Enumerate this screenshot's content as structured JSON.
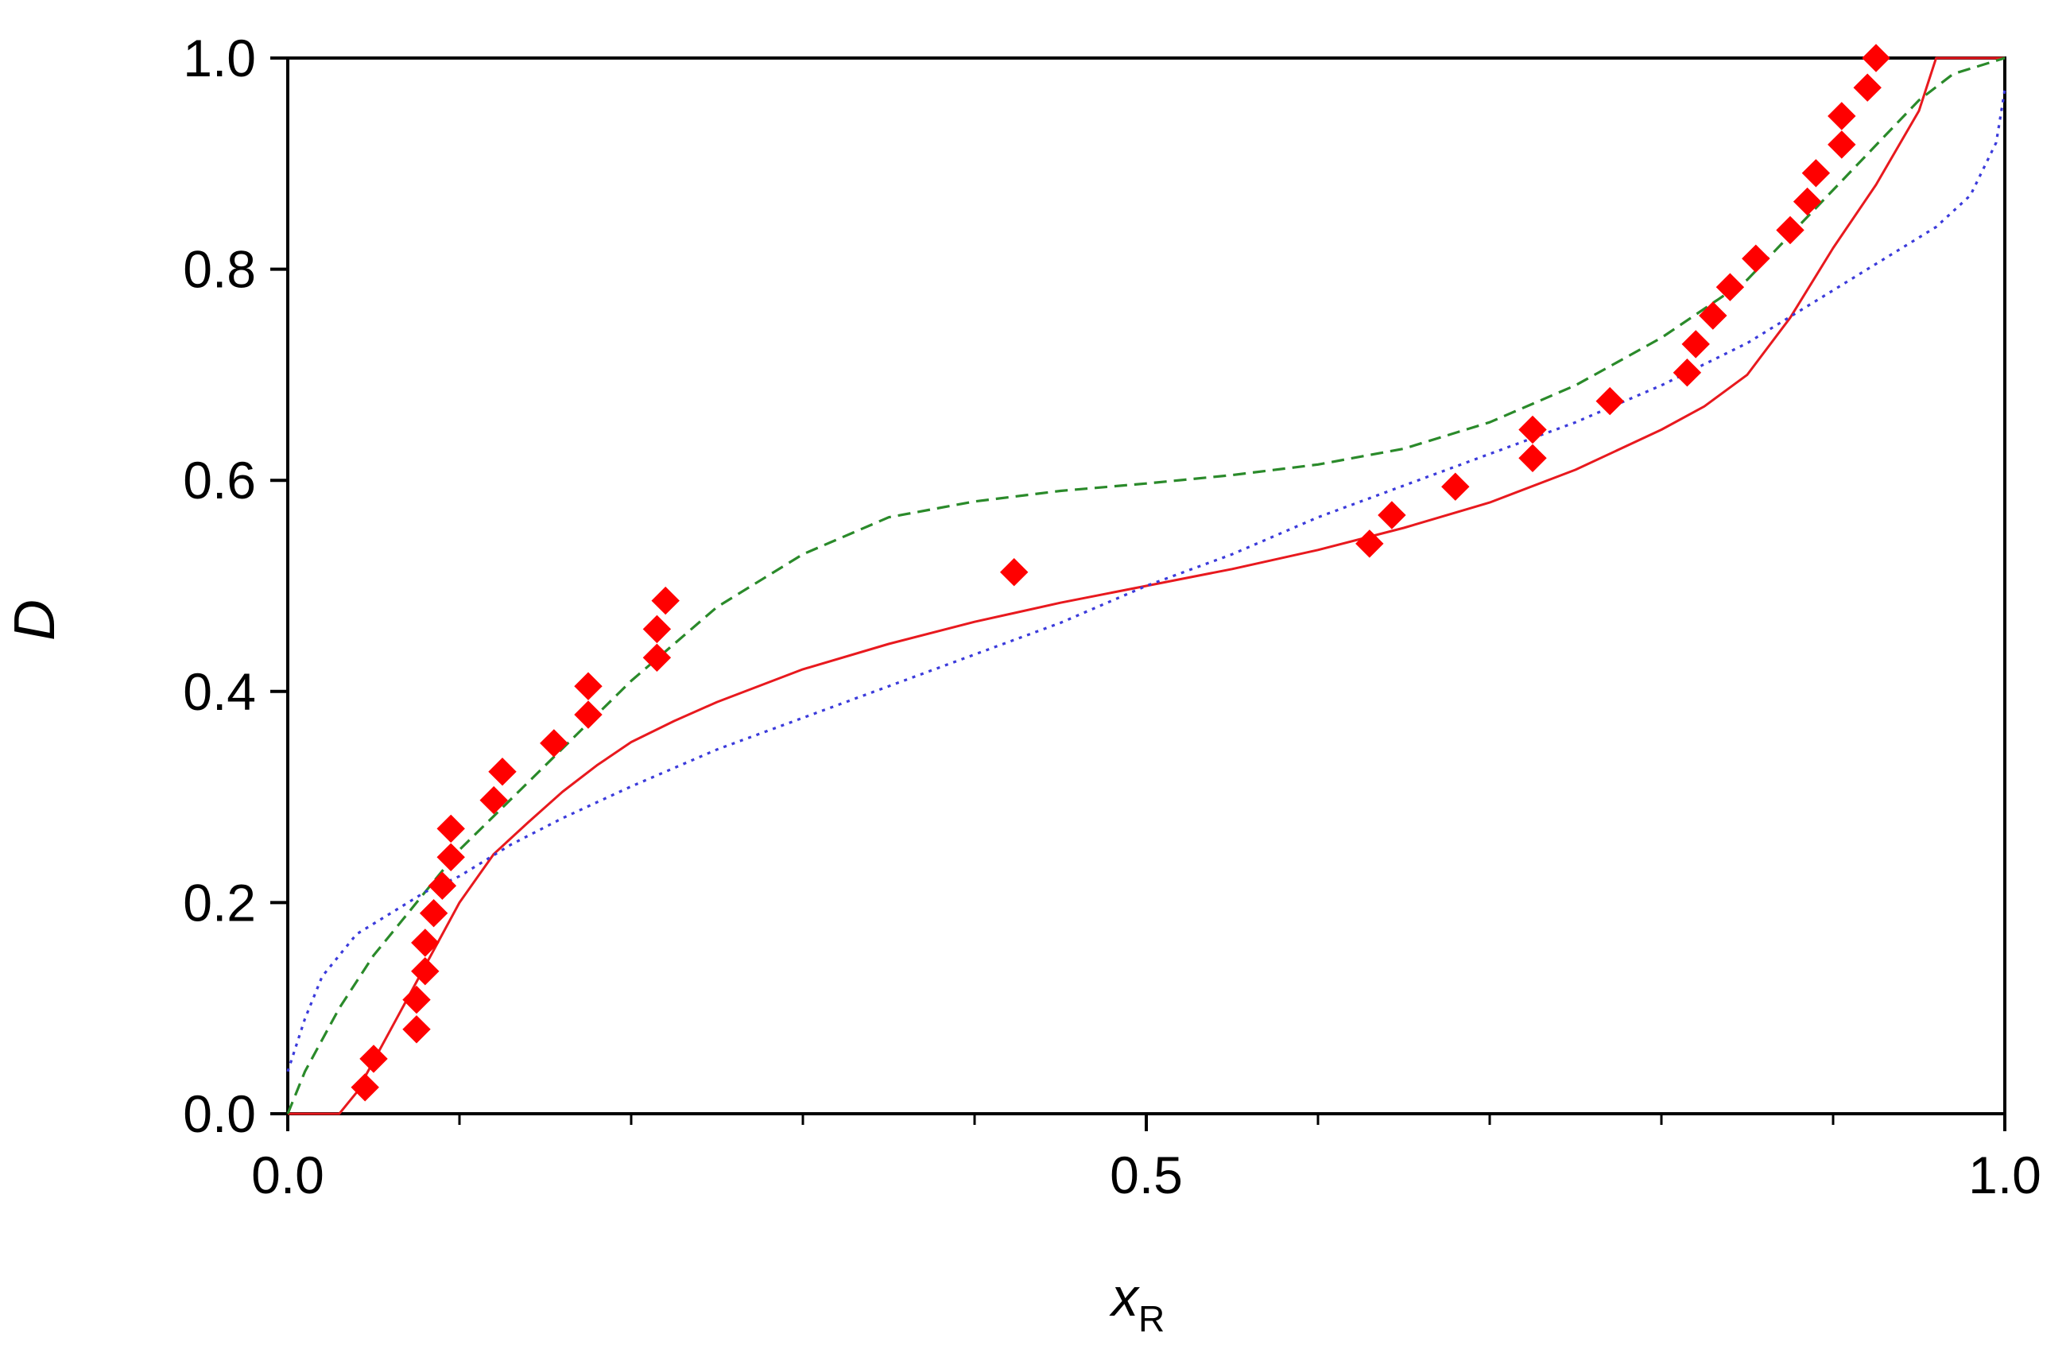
{
  "chart_data": {
    "type": "scatter",
    "xlabel": "x",
    "xlabel_subscript": "R",
    "ylabel": "D",
    "xlim": [
      0.0,
      1.0
    ],
    "ylim": [
      0.0,
      1.0
    ],
    "x_major_ticks": [
      0.0,
      0.5,
      1.0
    ],
    "x_tick_labels": [
      "0.0",
      "0.5",
      "1.0"
    ],
    "x_minor_ticks": [
      0.1,
      0.2,
      0.3,
      0.4,
      0.6,
      0.7,
      0.8,
      0.9
    ],
    "y_ticks": [
      0.0,
      0.2,
      0.4,
      0.6,
      0.8,
      1.0
    ],
    "y_tick_labels": [
      "0.0",
      "0.2",
      "0.4",
      "0.6",
      "0.8",
      "1.0"
    ],
    "grid": false,
    "legend": "none",
    "series": [
      {
        "kind": "scatter",
        "marker": "diamond",
        "color": "#ff0000",
        "points": [
          [
            0.045,
            0.025
          ],
          [
            0.05,
            0.052
          ],
          [
            0.075,
            0.08
          ],
          [
            0.075,
            0.108
          ],
          [
            0.08,
            0.135
          ],
          [
            0.08,
            0.162
          ],
          [
            0.085,
            0.19
          ],
          [
            0.09,
            0.216
          ],
          [
            0.095,
            0.243
          ],
          [
            0.095,
            0.27
          ],
          [
            0.12,
            0.297
          ],
          [
            0.125,
            0.324
          ],
          [
            0.155,
            0.351
          ],
          [
            0.175,
            0.378
          ],
          [
            0.175,
            0.405
          ],
          [
            0.215,
            0.432
          ],
          [
            0.215,
            0.459
          ],
          [
            0.22,
            0.486
          ],
          [
            0.423,
            0.513
          ],
          [
            0.63,
            0.54
          ],
          [
            0.643,
            0.567
          ],
          [
            0.68,
            0.594
          ],
          [
            0.725,
            0.621
          ],
          [
            0.725,
            0.648
          ],
          [
            0.77,
            0.675
          ],
          [
            0.815,
            0.702
          ],
          [
            0.82,
            0.729
          ],
          [
            0.83,
            0.756
          ],
          [
            0.84,
            0.783
          ],
          [
            0.855,
            0.81
          ],
          [
            0.875,
            0.837
          ],
          [
            0.885,
            0.864
          ],
          [
            0.89,
            0.891
          ],
          [
            0.905,
            0.918
          ],
          [
            0.905,
            0.945
          ],
          [
            0.92,
            0.972
          ],
          [
            0.925,
            1.0
          ]
        ]
      },
      {
        "kind": "line",
        "style": "solid",
        "color": "#e8191e",
        "points": [
          [
            0.0,
            0.0
          ],
          [
            0.03,
            0.0
          ],
          [
            0.04,
            0.02
          ],
          [
            0.06,
            0.08
          ],
          [
            0.08,
            0.14
          ],
          [
            0.1,
            0.2
          ],
          [
            0.12,
            0.246
          ],
          [
            0.14,
            0.276
          ],
          [
            0.16,
            0.305
          ],
          [
            0.18,
            0.33
          ],
          [
            0.2,
            0.352
          ],
          [
            0.225,
            0.372
          ],
          [
            0.25,
            0.39
          ],
          [
            0.3,
            0.421
          ],
          [
            0.35,
            0.445
          ],
          [
            0.4,
            0.466
          ],
          [
            0.45,
            0.484
          ],
          [
            0.5,
            0.5
          ],
          [
            0.55,
            0.516
          ],
          [
            0.6,
            0.534
          ],
          [
            0.65,
            0.555
          ],
          [
            0.7,
            0.579
          ],
          [
            0.75,
            0.61
          ],
          [
            0.8,
            0.648
          ],
          [
            0.825,
            0.67
          ],
          [
            0.85,
            0.7
          ],
          [
            0.875,
            0.754
          ],
          [
            0.9,
            0.82
          ],
          [
            0.925,
            0.88
          ],
          [
            0.95,
            0.95
          ],
          [
            0.96,
            1.0
          ],
          [
            1.0,
            1.0
          ]
        ]
      },
      {
        "kind": "line",
        "style": "dashed",
        "color": "#2a8a2a",
        "points": [
          [
            0.0,
            0.0
          ],
          [
            0.01,
            0.04
          ],
          [
            0.03,
            0.1
          ],
          [
            0.05,
            0.15
          ],
          [
            0.07,
            0.19
          ],
          [
            0.1,
            0.25
          ],
          [
            0.15,
            0.33
          ],
          [
            0.2,
            0.41
          ],
          [
            0.25,
            0.48
          ],
          [
            0.3,
            0.53
          ],
          [
            0.35,
            0.565
          ],
          [
            0.4,
            0.58
          ],
          [
            0.45,
            0.59
          ],
          [
            0.5,
            0.597
          ],
          [
            0.55,
            0.605
          ],
          [
            0.6,
            0.615
          ],
          [
            0.65,
            0.63
          ],
          [
            0.7,
            0.655
          ],
          [
            0.75,
            0.69
          ],
          [
            0.8,
            0.735
          ],
          [
            0.85,
            0.79
          ],
          [
            0.9,
            0.875
          ],
          [
            0.95,
            0.96
          ],
          [
            0.97,
            0.985
          ],
          [
            1.0,
            1.0
          ]
        ]
      },
      {
        "kind": "line",
        "style": "dotted",
        "color": "#3b3bdb",
        "points": [
          [
            0.0,
            0.04
          ],
          [
            0.01,
            0.09
          ],
          [
            0.02,
            0.13
          ],
          [
            0.04,
            0.17
          ],
          [
            0.06,
            0.19
          ],
          [
            0.08,
            0.21
          ],
          [
            0.1,
            0.225
          ],
          [
            0.13,
            0.255
          ],
          [
            0.16,
            0.28
          ],
          [
            0.2,
            0.31
          ],
          [
            0.25,
            0.345
          ],
          [
            0.3,
            0.375
          ],
          [
            0.35,
            0.405
          ],
          [
            0.4,
            0.435
          ],
          [
            0.45,
            0.465
          ],
          [
            0.5,
            0.5
          ],
          [
            0.55,
            0.53
          ],
          [
            0.6,
            0.565
          ],
          [
            0.65,
            0.595
          ],
          [
            0.7,
            0.625
          ],
          [
            0.75,
            0.655
          ],
          [
            0.8,
            0.69
          ],
          [
            0.85,
            0.73
          ],
          [
            0.9,
            0.78
          ],
          [
            0.93,
            0.81
          ],
          [
            0.96,
            0.84
          ],
          [
            0.98,
            0.87
          ],
          [
            0.995,
            0.92
          ],
          [
            1.0,
            0.97
          ]
        ]
      }
    ]
  }
}
